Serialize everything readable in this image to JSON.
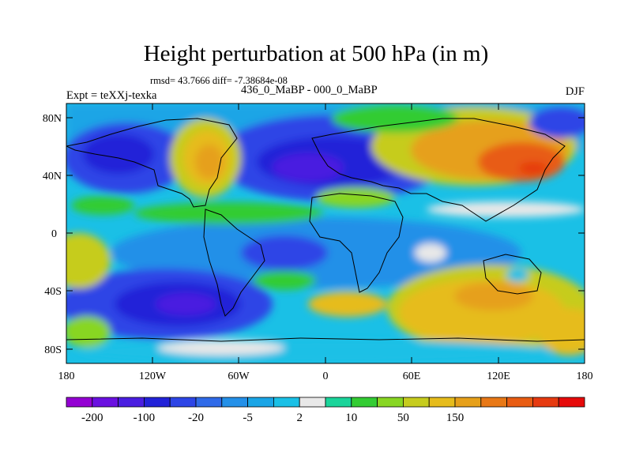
{
  "title": "Height perturbation at 500 hPa (in m)",
  "stats_line": "rmsd= 43.7666 diff= -7.38684e-08",
  "experiment": "Expt = teXXj-texka",
  "case_label": "436_0_MaBP - 000_0_MaBP",
  "season": "DJF",
  "lat_labels": [
    "80N",
    "40N",
    "0",
    "40S",
    "80S"
  ],
  "lon_labels": [
    "180",
    "120W",
    "60W",
    "0",
    "60E",
    "120E",
    "180"
  ],
  "colorbar": {
    "colors": [
      "#9400d3",
      "#6a10e0",
      "#4a1ee0",
      "#2222d8",
      "#2d45e6",
      "#2f6ae8",
      "#2490e8",
      "#1aa5e6",
      "#1ac0e6",
      "#e8e8e8",
      "#1ad49a",
      "#33cc33",
      "#88d623",
      "#c6cc1e",
      "#e6bc1c",
      "#e6a01a",
      "#e87816",
      "#e85c12",
      "#e63a10",
      "#e60a0a"
    ],
    "labels": [
      "-200",
      "-100",
      "-20",
      "-5",
      "2",
      "10",
      "50",
      "150"
    ]
  }
}
